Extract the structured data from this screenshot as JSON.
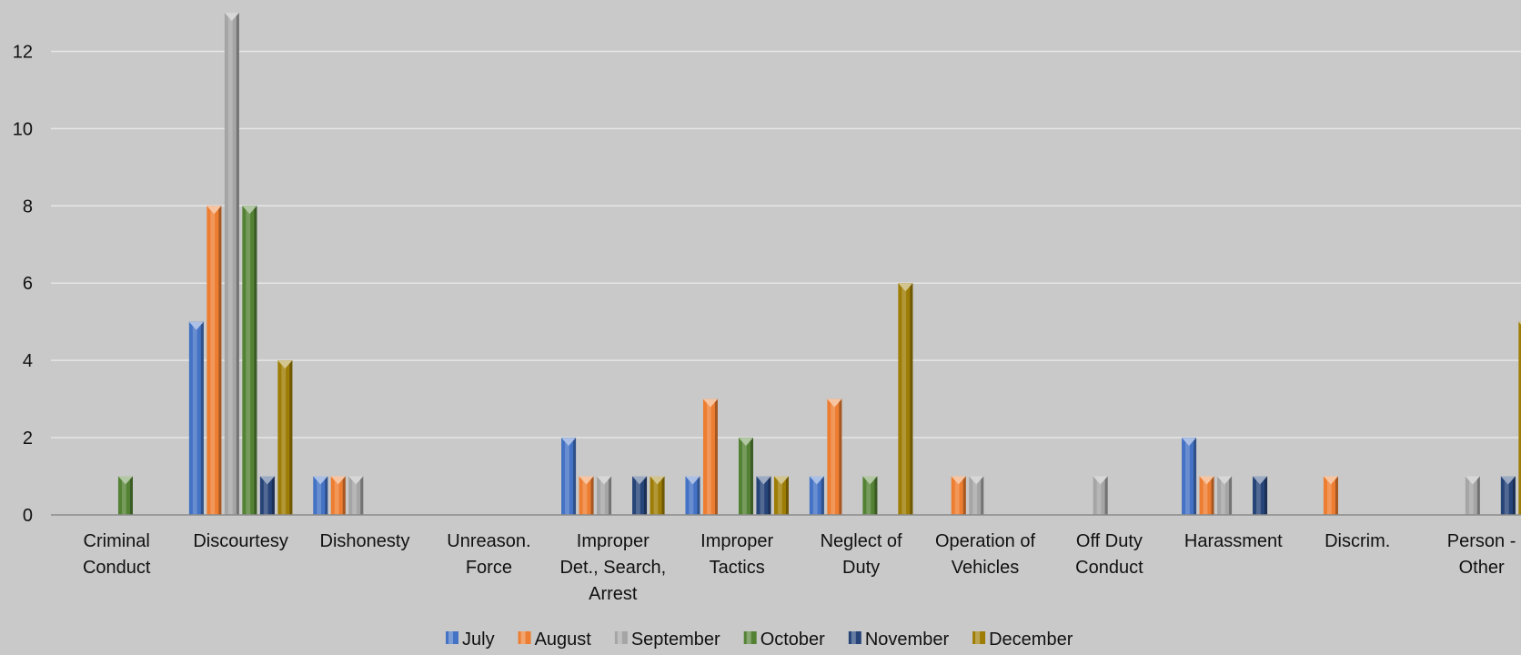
{
  "chart_data": {
    "type": "bar",
    "title": "",
    "xlabel": "",
    "ylabel": "",
    "ylim": [
      0,
      13
    ],
    "yticks": [
      0,
      2,
      4,
      6,
      8,
      10,
      12
    ],
    "grid": true,
    "legend_position": "bottom",
    "categories": [
      [
        "Criminal",
        "Conduct"
      ],
      [
        "Discourtesy"
      ],
      [
        "Dishonesty"
      ],
      [
        "Unreason.",
        "Force"
      ],
      [
        "Improper",
        "Det., Search,",
        "Arrest"
      ],
      [
        "Improper",
        "Tactics"
      ],
      [
        "Neglect of",
        "Duty"
      ],
      [
        "Operation of",
        "Vehicles"
      ],
      [
        "Off Duty",
        "Conduct"
      ],
      [
        "Harassment"
      ],
      [
        "Discrim."
      ],
      [
        "Person -",
        "Other"
      ]
    ],
    "series": [
      {
        "name": "July",
        "color": "#4472c4",
        "values": [
          0,
          5,
          1,
          0,
          2,
          1,
          1,
          0,
          0,
          2,
          0,
          0
        ]
      },
      {
        "name": "August",
        "color": "#ed7d31",
        "values": [
          0,
          8,
          1,
          0,
          1,
          3,
          3,
          1,
          0,
          1,
          1,
          0
        ]
      },
      {
        "name": "September",
        "color": "#a5a5a5",
        "values": [
          0,
          13,
          1,
          0,
          1,
          0,
          0,
          1,
          1,
          1,
          0,
          1
        ]
      },
      {
        "name": "October",
        "color": "#548235",
        "values": [
          1,
          8,
          0,
          0,
          0,
          2,
          1,
          0,
          0,
          0,
          0,
          0
        ]
      },
      {
        "name": "November",
        "color": "#264478",
        "values": [
          0,
          1,
          0,
          0,
          1,
          1,
          0,
          0,
          0,
          1,
          0,
          1
        ]
      },
      {
        "name": "December",
        "color": "#9e7d06",
        "values": [
          0,
          4,
          0,
          0,
          1,
          1,
          6,
          0,
          0,
          0,
          0,
          5
        ]
      }
    ]
  }
}
